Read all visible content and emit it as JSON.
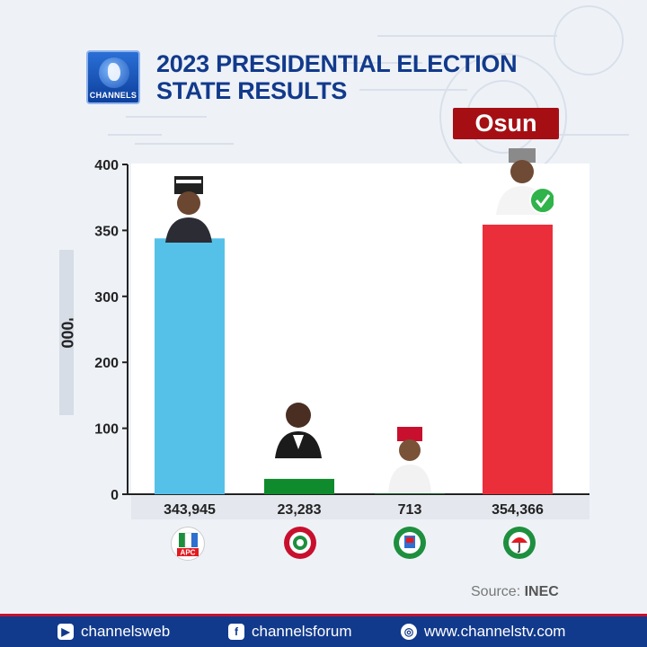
{
  "header": {
    "logo_text": "CHANNELS",
    "title_line1": "2023 PRESIDENTIAL ELECTION",
    "title_line2": "STATE RESULTS",
    "state": "Osun"
  },
  "chart_data": {
    "type": "bar",
    "title": "2023 PRESIDENTIAL ELECTION STATE RESULTS",
    "ylabel": "'000",
    "ylim": [
      0,
      400
    ],
    "yticks": [
      0,
      100,
      200,
      300,
      350,
      400
    ],
    "categories": [
      "APC",
      "LP",
      "NNPP",
      "PDP"
    ],
    "values": [
      343945,
      23283,
      713,
      354366
    ],
    "value_labels": [
      "343,945",
      "23,283",
      "713",
      "354,366"
    ],
    "colors": [
      "#56c1e8",
      "#0f8a2c",
      "#0f8a2c",
      "#ea2f3a"
    ],
    "winner": "PDP"
  },
  "parties": [
    {
      "name": "APC",
      "label": "APC"
    },
    {
      "name": "LP",
      "label": ""
    },
    {
      "name": "NNPP",
      "label": ""
    },
    {
      "name": "PDP",
      "label": ""
    }
  ],
  "source": {
    "label": "Source:",
    "value": "INEC"
  },
  "footer": {
    "youtube": "channelsweb",
    "facebook": "channelsforum",
    "website": "www.channelstv.com"
  }
}
